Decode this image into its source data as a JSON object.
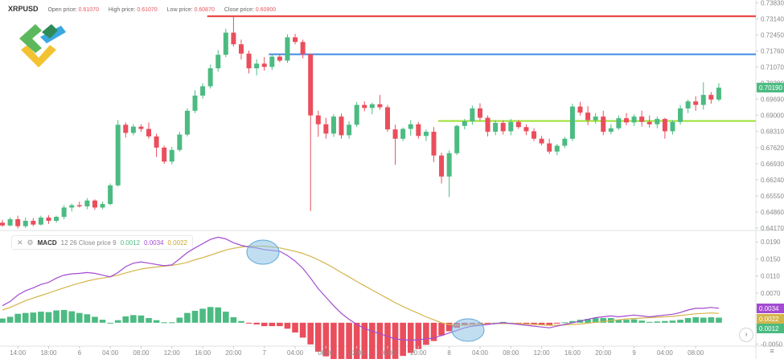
{
  "header": {
    "symbol": "XRPUSD",
    "open_label": "Open price:",
    "open_value": "0.61070",
    "high_label": "High price:",
    "high_value": "0.61070",
    "low_label": "Low price:",
    "low_value": "0.60870",
    "close_label": "Close price:",
    "close_value": "0.60900"
  },
  "macd_legend": {
    "name": "MACD",
    "params": "12 26 Close price 9",
    "v1": "0.0012",
    "v2": "0.0034",
    "v3": "0.0022",
    "close_icon": "close-icon",
    "settings_icon": "gear-icon"
  },
  "controls": {
    "next_icon": "chevron-right-icon",
    "menu_icon": "menu-icon"
  },
  "colors": {
    "up": "#4cbb82",
    "down": "#ea4e5c",
    "resistance": "#e53935",
    "mid": "#3d8ae8",
    "support": "#9be033",
    "macd": "#a34bd1",
    "signal": "#d4b54a",
    "current": "#4cbb82",
    "ellipse": "#8ec3e6"
  },
  "chart_data": {
    "type": "candlestick",
    "price_axis": {
      "ticks": [
        "0.73830",
        "0.73140",
        "0.72450",
        "0.71760",
        "0.71070",
        "0.70380",
        "0.69690",
        "0.69000",
        "0.68310",
        "0.67620",
        "0.66930",
        "0.66240",
        "0.65550",
        "0.64860",
        "0.64170"
      ],
      "range": [
        0.641,
        0.7388
      ],
      "current": "0.70190"
    },
    "time_axis": {
      "labels": [
        "14:00",
        "18:00",
        "6",
        "04:00",
        "08:00",
        "12:00",
        "16:00",
        "20:00",
        "7",
        "04:00",
        "08:00",
        "12:00",
        "16:00",
        "20:00",
        "8",
        "04:00",
        "08:00",
        "12:00",
        "16:00",
        "20:00",
        "9",
        "04:00",
        "08:00"
      ],
      "label_index": [
        2,
        6,
        10,
        14,
        18,
        22,
        26,
        30,
        34,
        38,
        42,
        46,
        50,
        54,
        58,
        62,
        66,
        70,
        74,
        78,
        82,
        86,
        90
      ]
    },
    "levels": [
      {
        "price": 0.7325,
        "color": "#e53935",
        "start_index": 27
      },
      {
        "price": 0.7162,
        "color": "#3d8ae8",
        "start_index": 35
      },
      {
        "price": 0.6876,
        "color": "#9be033",
        "start_index": 57
      }
    ],
    "candles": [
      [
        0.644,
        0.6452,
        0.6423,
        0.6428
      ],
      [
        0.6428,
        0.6462,
        0.6425,
        0.6455
      ],
      [
        0.6455,
        0.647,
        0.6415,
        0.6425
      ],
      [
        0.6425,
        0.6462,
        0.6418,
        0.6448
      ],
      [
        0.6448,
        0.646,
        0.6425,
        0.6432
      ],
      [
        0.6432,
        0.647,
        0.6428,
        0.6462
      ],
      [
        0.6462,
        0.6472,
        0.6435,
        0.6448
      ],
      [
        0.6448,
        0.647,
        0.644,
        0.6465
      ],
      [
        0.6465,
        0.6515,
        0.6455,
        0.6505
      ],
      [
        0.6505,
        0.6522,
        0.6488,
        0.6515
      ],
      [
        0.6515,
        0.653,
        0.6505,
        0.651
      ],
      [
        0.651,
        0.6545,
        0.6498,
        0.6535
      ],
      [
        0.6535,
        0.654,
        0.6495,
        0.6505
      ],
      [
        0.6505,
        0.653,
        0.6498,
        0.652
      ],
      [
        0.652,
        0.6608,
        0.6515,
        0.66
      ],
      [
        0.66,
        0.688,
        0.6595,
        0.686
      ],
      [
        0.686,
        0.687,
        0.6805,
        0.6825
      ],
      [
        0.6825,
        0.6862,
        0.6815,
        0.6852
      ],
      [
        0.6852,
        0.6862,
        0.683,
        0.6842
      ],
      [
        0.6842,
        0.687,
        0.68,
        0.681
      ],
      [
        0.681,
        0.6822,
        0.6722,
        0.6762
      ],
      [
        0.6762,
        0.677,
        0.6692,
        0.6702
      ],
      [
        0.6702,
        0.6765,
        0.669,
        0.6752
      ],
      [
        0.6752,
        0.683,
        0.6745,
        0.6818
      ],
      [
        0.6818,
        0.693,
        0.681,
        0.692
      ],
      [
        0.692,
        0.7008,
        0.691,
        0.6985
      ],
      [
        0.6985,
        0.7038,
        0.6972,
        0.7025
      ],
      [
        0.7025,
        0.7118,
        0.7015,
        0.7102
      ],
      [
        0.7102,
        0.718,
        0.7088,
        0.716
      ],
      [
        0.716,
        0.7272,
        0.715,
        0.7255
      ],
      [
        0.7255,
        0.7325,
        0.7195,
        0.7205
      ],
      [
        0.7205,
        0.7225,
        0.714,
        0.7165
      ],
      [
        0.7165,
        0.7178,
        0.708,
        0.7102
      ],
      [
        0.7102,
        0.714,
        0.7072,
        0.7122
      ],
      [
        0.7122,
        0.715,
        0.7092,
        0.7108
      ],
      [
        0.7108,
        0.7162,
        0.7095,
        0.7152
      ],
      [
        0.7152,
        0.7165,
        0.7128,
        0.7135
      ],
      [
        0.7135,
        0.7248,
        0.7125,
        0.7235
      ],
      [
        0.7235,
        0.725,
        0.7205,
        0.7215
      ],
      [
        0.7215,
        0.7225,
        0.7145,
        0.7162
      ],
      [
        0.7162,
        0.7165,
        0.649,
        0.69
      ],
      [
        0.69,
        0.692,
        0.6808,
        0.6862
      ],
      [
        0.6862,
        0.689,
        0.68,
        0.6822
      ],
      [
        0.6822,
        0.6905,
        0.6808,
        0.6895
      ],
      [
        0.6895,
        0.6908,
        0.68,
        0.6815
      ],
      [
        0.6815,
        0.6875,
        0.68,
        0.686
      ],
      [
        0.686,
        0.6958,
        0.685,
        0.6945
      ],
      [
        0.6945,
        0.696,
        0.6918,
        0.6932
      ],
      [
        0.6932,
        0.6955,
        0.6905,
        0.6948
      ],
      [
        0.6948,
        0.6988,
        0.6925,
        0.6935
      ],
      [
        0.6935,
        0.6945,
        0.683,
        0.684
      ],
      [
        0.684,
        0.686,
        0.6688,
        0.68
      ],
      [
        0.68,
        0.6848,
        0.679,
        0.6842
      ],
      [
        0.6842,
        0.688,
        0.6812,
        0.6862
      ],
      [
        0.6862,
        0.6872,
        0.68,
        0.6812
      ],
      [
        0.6812,
        0.684,
        0.679,
        0.683
      ],
      [
        0.683,
        0.685,
        0.67,
        0.6728
      ],
      [
        0.6728,
        0.674,
        0.6608,
        0.6638
      ],
      [
        0.6638,
        0.675,
        0.655,
        0.6738
      ],
      [
        0.6738,
        0.686,
        0.673,
        0.6855
      ],
      [
        0.6855,
        0.6885,
        0.684,
        0.6875
      ],
      [
        0.6875,
        0.6942,
        0.686,
        0.693
      ],
      [
        0.693,
        0.6952,
        0.6878,
        0.689
      ],
      [
        0.689,
        0.69,
        0.681,
        0.683
      ],
      [
        0.683,
        0.688,
        0.6815,
        0.6868
      ],
      [
        0.6868,
        0.6878,
        0.6818,
        0.6832
      ],
      [
        0.6832,
        0.6885,
        0.6815,
        0.6872
      ],
      [
        0.6872,
        0.688,
        0.6842,
        0.685
      ],
      [
        0.685,
        0.6862,
        0.6815,
        0.6832
      ],
      [
        0.6832,
        0.6845,
        0.679,
        0.68
      ],
      [
        0.68,
        0.6812,
        0.6772,
        0.678
      ],
      [
        0.678,
        0.68,
        0.6735,
        0.6745
      ],
      [
        0.6745,
        0.6778,
        0.673,
        0.677
      ],
      [
        0.677,
        0.6808,
        0.676,
        0.68
      ],
      [
        0.68,
        0.695,
        0.679,
        0.6938
      ],
      [
        0.6938,
        0.6958,
        0.69,
        0.6912
      ],
      [
        0.6912,
        0.694,
        0.6858,
        0.688
      ],
      [
        0.688,
        0.691,
        0.6865,
        0.6895
      ],
      [
        0.6895,
        0.692,
        0.6815,
        0.683
      ],
      [
        0.683,
        0.6862,
        0.682,
        0.6845
      ],
      [
        0.6845,
        0.69,
        0.6838,
        0.6888
      ],
      [
        0.6888,
        0.691,
        0.6858,
        0.687
      ],
      [
        0.687,
        0.6905,
        0.6855,
        0.6895
      ],
      [
        0.6895,
        0.692,
        0.6852,
        0.6872
      ],
      [
        0.6872,
        0.69,
        0.6848,
        0.6862
      ],
      [
        0.6862,
        0.6895,
        0.6845,
        0.6885
      ],
      [
        0.6885,
        0.689,
        0.68,
        0.6832
      ],
      [
        0.6832,
        0.688,
        0.6818,
        0.6872
      ],
      [
        0.6872,
        0.6945,
        0.686,
        0.693
      ],
      [
        0.693,
        0.6968,
        0.691,
        0.696
      ],
      [
        0.696,
        0.6982,
        0.692,
        0.6945
      ],
      [
        0.6945,
        0.7042,
        0.6925,
        0.6988
      ],
      [
        0.6988,
        0.7,
        0.695,
        0.6968
      ],
      [
        0.6968,
        0.7038,
        0.696,
        0.7019
      ]
    ],
    "macd": {
      "axis_ticks": [
        "0.0190",
        "0.0150",
        "0.0110",
        "0.0070",
        "0.0030",
        "-0.0010",
        "-0.0050"
      ],
      "range": [
        -0.0055,
        0.0215
      ],
      "labels": {
        "macd": "0.0034",
        "signal": "0.0022",
        "histogram": "0.0012"
      },
      "macd_line": [
        0.004,
        0.005,
        0.0065,
        0.0075,
        0.0082,
        0.009,
        0.0095,
        0.0105,
        0.0112,
        0.0115,
        0.0116,
        0.0118,
        0.0116,
        0.0112,
        0.0108,
        0.0118,
        0.0132,
        0.014,
        0.0143,
        0.014,
        0.0137,
        0.0134,
        0.0136,
        0.015,
        0.0165,
        0.0176,
        0.0186,
        0.0196,
        0.0201,
        0.0197,
        0.0188,
        0.0182,
        0.0178,
        0.0176,
        0.0172,
        0.017,
        0.0168,
        0.0158,
        0.0145,
        0.0128,
        0.0105,
        0.008,
        0.006,
        0.004,
        0.0022,
        0.0008,
        -0.0004,
        -0.0013,
        -0.002,
        -0.0026,
        -0.0032,
        -0.0038,
        -0.004,
        -0.0041,
        -0.004,
        -0.0038,
        -0.0036,
        -0.003,
        -0.0024,
        -0.0018,
        -0.0012,
        -0.0008,
        -0.0006,
        -0.0004,
        -0.0002,
        0.0,
        -0.0002,
        -0.0004,
        -0.0006,
        -0.0008,
        -0.001,
        -0.0012,
        -0.0008,
        -0.0004,
        0.0,
        0.0004,
        0.0008,
        0.0012,
        0.0014,
        0.0016,
        0.0014,
        0.0016,
        0.0018,
        0.0016,
        0.0014,
        0.0016,
        0.0018,
        0.002,
        0.0024,
        0.003,
        0.0034,
        0.0034,
        0.0036,
        0.0034
      ],
      "signal_line": [
        0.003,
        0.0036,
        0.0044,
        0.0052,
        0.0058,
        0.0064,
        0.007,
        0.0076,
        0.0082,
        0.0088,
        0.0093,
        0.0098,
        0.0102,
        0.0105,
        0.0108,
        0.0112,
        0.0117,
        0.0122,
        0.0126,
        0.0129,
        0.0131,
        0.0133,
        0.0135,
        0.0138,
        0.0142,
        0.0148,
        0.0153,
        0.0159,
        0.0165,
        0.0171,
        0.0175,
        0.0178,
        0.018,
        0.018,
        0.018,
        0.0178,
        0.0176,
        0.0172,
        0.0168,
        0.0163,
        0.0156,
        0.0148,
        0.0139,
        0.0129,
        0.0118,
        0.0108,
        0.0097,
        0.0087,
        0.0077,
        0.0067,
        0.0057,
        0.0047,
        0.0038,
        0.003,
        0.0022,
        0.0014,
        0.0007,
        0.0,
        -0.0004,
        -0.0006,
        -0.0006,
        -0.0005,
        -0.0004,
        -0.0003,
        -0.0002,
        -0.0002,
        -0.0002,
        -0.0002,
        -0.0003,
        -0.0004,
        -0.0005,
        -0.0006,
        -0.0006,
        -0.0005,
        -0.0004,
        -0.0003,
        -0.0001,
        0.0001,
        0.0003,
        0.0005,
        0.0007,
        0.0009,
        0.001,
        0.0011,
        0.0012,
        0.0013,
        0.0014,
        0.0015,
        0.0017,
        0.0019,
        0.0021,
        0.0022,
        0.0023,
        0.0022
      ]
    }
  }
}
